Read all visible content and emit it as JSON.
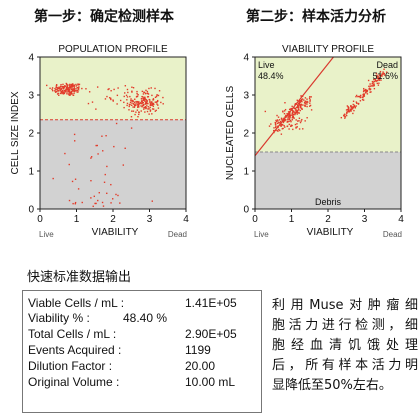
{
  "step1_title": "第一步：确定检测样本",
  "step2_title": "第二步：样本活力分析",
  "section_title": "快速标准数据输出",
  "results": [
    {
      "label": "Viable Cells / mL :",
      "value": "1.41E+05"
    },
    {
      "label": "Viability % :",
      "value": "48.40 %",
      "inline": true
    },
    {
      "label": "Total Cells / mL :",
      "value": "2.90E+05"
    },
    {
      "label": "Events Acquired :",
      "value": "1199"
    },
    {
      "label": "Dilution Factor :",
      "value": "20.00"
    },
    {
      "label": "Original Volume :",
      "value": "10.00 mL"
    }
  ],
  "note_lines": [
    "利用Muse对肿瘤细",
    "胞活力进行检测，细",
    "胞经血清饥饿处理",
    "后，所有样本活力明",
    "显降低至50%左右。"
  ],
  "colors": {
    "upper_region": "#e9f2c9",
    "lower_region": "#d2d2d2",
    "points": "#e23b2a",
    "gate_line": "#d93a2e",
    "debris_line": "#888888"
  },
  "chart_data": [
    {
      "type": "scatter",
      "title": "POPULATION PROFILE",
      "xlabel": "VIABILITY",
      "ylabel": "CELL SIZE INDEX",
      "xlim": [
        0,
        4
      ],
      "ylim": [
        0,
        4
      ],
      "xticks": [
        "0",
        "1",
        "2",
        "3",
        "4"
      ],
      "yticks": [
        "0",
        "1",
        "2",
        "3",
        "4"
      ],
      "corner_labels": {
        "left": "Live",
        "right": "Dead"
      },
      "threshold_y": 2.35,
      "grid": false,
      "clusters": [
        {
          "cx": 0.75,
          "cy": 3.15,
          "sx": 0.22,
          "sy": 0.09,
          "n": 170
        },
        {
          "cx": 2.85,
          "cy": 2.8,
          "sx": 0.22,
          "sy": 0.16,
          "n": 180
        },
        {
          "cx": 2.1,
          "cy": 2.95,
          "sx": 0.35,
          "sy": 0.18,
          "n": 30
        },
        {
          "cx": 1.4,
          "cy": 1.0,
          "sx": 0.6,
          "sy": 0.7,
          "n": 35
        },
        {
          "cx": 1.7,
          "cy": 0.2,
          "sx": 0.35,
          "sy": 0.15,
          "n": 15
        }
      ]
    },
    {
      "type": "scatter",
      "title": "VIABILITY PROFILE",
      "xlabel": "VIABILITY",
      "ylabel": "NUCLEATED CELLS",
      "xlim": [
        0,
        4
      ],
      "ylim": [
        0,
        4
      ],
      "xticks": [
        "0",
        "1",
        "2",
        "3",
        "4"
      ],
      "yticks": [
        "0",
        "1",
        "2",
        "3",
        "4"
      ],
      "corner_labels": {
        "left": "Live",
        "right": "Dead"
      },
      "gates": [
        {
          "name": "Live",
          "percent": "48.4%"
        },
        {
          "name": "Dead",
          "percent": "51.6%"
        },
        {
          "name": "Debris"
        }
      ],
      "gate_line": [
        [
          0,
          1.4
        ],
        [
          2.15,
          4
        ]
      ],
      "threshold_y": 1.5,
      "grid": false,
      "clusters": [
        {
          "kind": "line",
          "x0": 0.55,
          "y0": 2.1,
          "x1": 1.45,
          "y1": 2.9,
          "spread": 0.1,
          "n": 200
        },
        {
          "kind": "line",
          "x0": 2.4,
          "y0": 2.4,
          "x1": 3.55,
          "y1": 3.6,
          "spread": 0.05,
          "n": 150
        },
        {
          "kind": "blob",
          "cx": 1.0,
          "cy": 2.4,
          "sx": 0.25,
          "sy": 0.15,
          "n": 40
        }
      ]
    }
  ]
}
